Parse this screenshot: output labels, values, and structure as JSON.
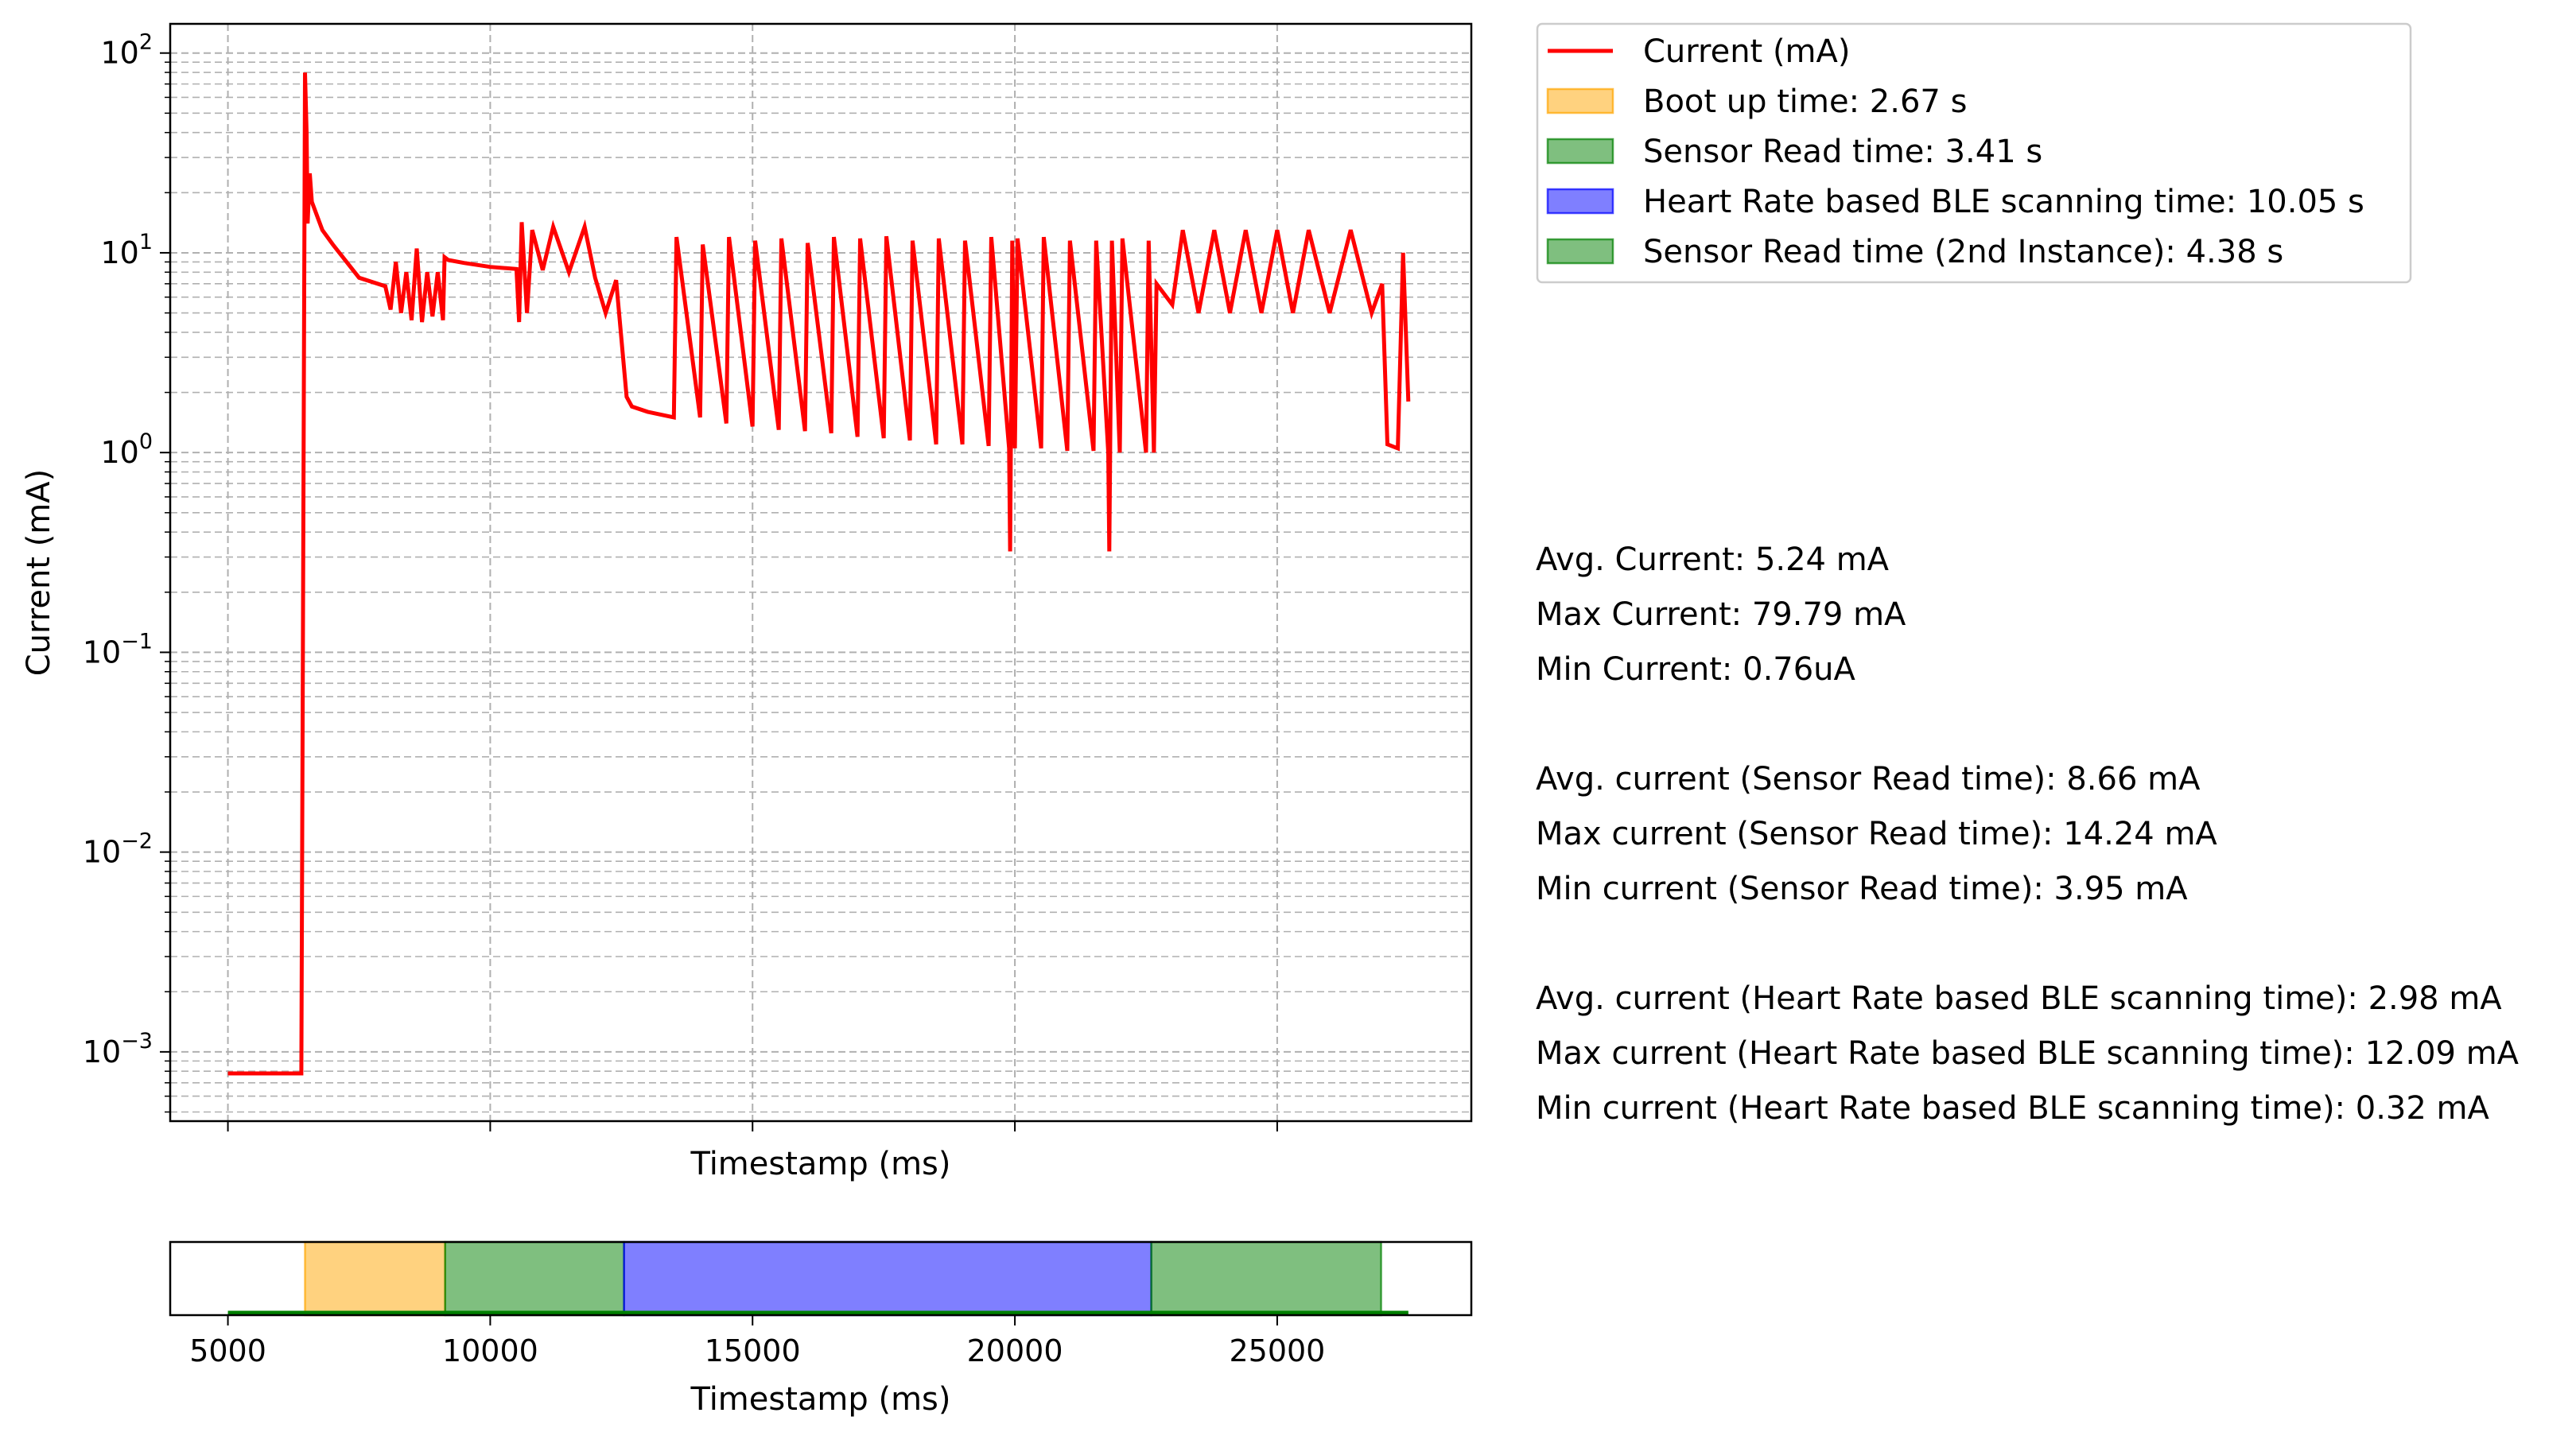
{
  "chart_data": [
    {
      "type": "line",
      "title": "",
      "xlabel": "Timestamp (ms)",
      "ylabel": "Current (mA)",
      "yscale": "log",
      "xlim": [
        3900,
        28700
      ],
      "ylim": [
        0.00045,
        140
      ],
      "grid": true,
      "legend_position": "outside-right-top",
      "x_ticks": [
        5000,
        10000,
        15000,
        20000,
        25000
      ],
      "y_ticks": [
        {
          "value": 0.001,
          "base": "10",
          "exp": "−3"
        },
        {
          "value": 0.01,
          "base": "10",
          "exp": "−2"
        },
        {
          "value": 0.1,
          "base": "10",
          "exp": "−1"
        },
        {
          "value": 1,
          "base": "10",
          "exp": "0"
        },
        {
          "value": 10,
          "base": "10",
          "exp": "1"
        },
        {
          "value": 100,
          "base": "10",
          "exp": "2"
        }
      ],
      "series": [
        {
          "name": "Current (mA)",
          "color": "#ff0000",
          "x": [
            5000,
            6400,
            6470,
            6500,
            6520,
            6560,
            6600,
            6800,
            7000,
            7500,
            8000,
            8100,
            8200,
            8300,
            8400,
            8500,
            8600,
            8700,
            8800,
            8900,
            9000,
            9100,
            9130,
            9200,
            9500,
            10000,
            10500,
            10550,
            10600,
            10700,
            10800,
            11000,
            11200,
            11500,
            11800,
            12000,
            12200,
            12400,
            12600,
            12700,
            13000,
            13500,
            13550,
            14000,
            14050,
            14500,
            14550,
            15000,
            15050,
            15500,
            15550,
            16000,
            16050,
            16500,
            16550,
            17000,
            17050,
            17500,
            17550,
            18000,
            18050,
            18500,
            18550,
            19000,
            19050,
            19500,
            19550,
            19890,
            19910,
            19950,
            20000,
            20050,
            20500,
            20550,
            21000,
            21050,
            21500,
            21550,
            21780,
            21800,
            21850,
            22000,
            22050,
            22500,
            22550,
            22650,
            22700,
            23000,
            23200,
            23500,
            23800,
            24100,
            24400,
            24700,
            25000,
            25300,
            25600,
            26000,
            26400,
            26800,
            27000,
            27100,
            27300,
            27400,
            27500
          ],
          "y": [
            0.00078,
            0.00078,
            79.79,
            40,
            14,
            25,
            18,
            13,
            11,
            7.5,
            6.8,
            5.2,
            9,
            5,
            8,
            4.6,
            10.5,
            4.5,
            8,
            4.8,
            8,
            4.6,
            9.5,
            9.2,
            8.9,
            8.5,
            8.3,
            4.5,
            14.24,
            5,
            13,
            8.2,
            13.5,
            8,
            13.5,
            7.5,
            5,
            7.3,
            1.9,
            1.7,
            1.6,
            1.5,
            12,
            1.5,
            11,
            1.4,
            12,
            1.35,
            11.5,
            1.3,
            11.8,
            1.28,
            11.2,
            1.25,
            12,
            1.2,
            11.8,
            1.18,
            12.09,
            1.15,
            11.5,
            1.1,
            11.8,
            1.1,
            11.5,
            1.08,
            12,
            1.05,
            0.32,
            11.5,
            1.05,
            11.8,
            1.05,
            12,
            1.02,
            11.5,
            1.02,
            11.5,
            1.0,
            0.32,
            11.5,
            1.0,
            11.8,
            1.0,
            11.5,
            1.0,
            7,
            5.5,
            13,
            5,
            13,
            5,
            13,
            5,
            13,
            5,
            13,
            5,
            13,
            5,
            7,
            1.1,
            1.05,
            10,
            1.8
          ]
        }
      ],
      "spans": [
        {
          "name": "Boot up time: 2.67 s",
          "start": 6470,
          "end": 9140,
          "color": "#ffa500",
          "alpha": 0.5
        },
        {
          "name": "Sensor Read time: 3.41 s",
          "start": 9140,
          "end": 12550,
          "color": "#008000",
          "alpha": 0.5
        },
        {
          "name": "Heart Rate based BLE scanning time: 10.05 s",
          "start": 12550,
          "end": 22600,
          "color": "#0000ff",
          "alpha": 0.5
        },
        {
          "name": "Sensor Read time (2nd Instance): 4.38 s",
          "start": 22600,
          "end": 26980,
          "color": "#008000",
          "alpha": 0.5
        }
      ]
    },
    {
      "type": "timeline",
      "xlabel": "Timestamp (ms)",
      "xlim": [
        3900,
        28700
      ],
      "x_ticks": [
        "5000",
        "10000",
        "15000",
        "20000",
        "25000"
      ],
      "baseline": {
        "start": 5000,
        "end": 27500,
        "color": "#008000"
      }
    }
  ],
  "stats": {
    "overall": [
      "Avg. Current: 5.24 mA",
      "Max Current: 79.79 mA",
      "Min Current: 0.76uA"
    ],
    "sensor_read": [
      "Avg. current (Sensor Read time): 8.66 mA",
      "Max current (Sensor Read time): 14.24 mA",
      "Min current (Sensor Read time): 3.95 mA"
    ],
    "ble_scanning": [
      "Avg. current (Heart Rate based BLE scanning time): 2.98 mA",
      "Max current (Heart Rate based BLE scanning time): 12.09 mA",
      "Min current (Heart Rate based BLE scanning time): 0.32 mA"
    ]
  }
}
